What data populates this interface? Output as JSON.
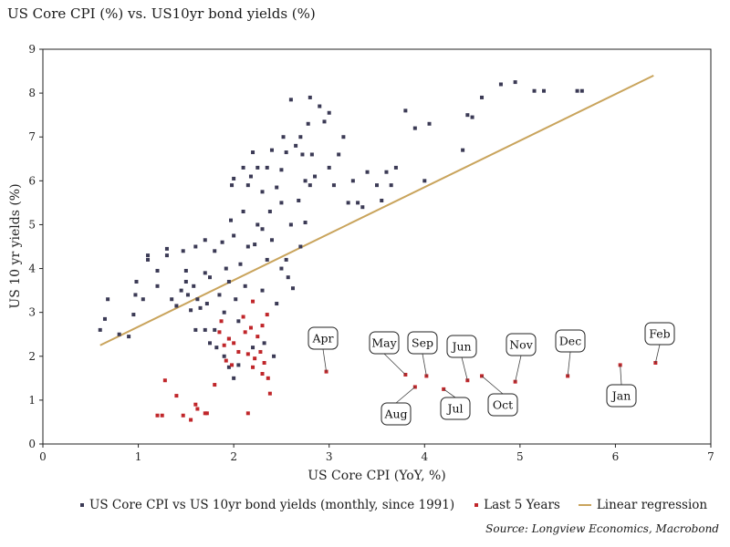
{
  "title": "US Core CPI (%) vs. US10yr bond yields (%)",
  "colors": {
    "historical": "#3b3a55",
    "recent": "#c0262a",
    "regression": "#c9a45c"
  },
  "legend": {
    "historical": "US Core CPI vs US 10yr bond yields (monthly, since 1991)",
    "recent": "Last 5 Years",
    "regression": "Linear regression"
  },
  "source": "Source: Longview Economics, Macrobond",
  "chart_data": {
    "type": "scatter",
    "xlabel": "US Core CPI (YoY, %)",
    "ylabel": "US 10 yr yields (%)",
    "xlim": [
      0,
      7
    ],
    "ylim": [
      0,
      9
    ],
    "xticks": [
      0,
      1,
      2,
      3,
      4,
      5,
      6,
      7
    ],
    "yticks": [
      0,
      1,
      2,
      3,
      4,
      5,
      6,
      7,
      8,
      9
    ],
    "grid": false,
    "legend_position": "bottom",
    "regression_line": [
      [
        0.6,
        2.25
      ],
      [
        6.4,
        8.4
      ]
    ],
    "series": [
      {
        "name": "US Core CPI vs US 10yr bond yields (monthly, since 1991)",
        "points": [
          [
            0.6,
            2.6
          ],
          [
            0.65,
            2.85
          ],
          [
            0.68,
            3.3
          ],
          [
            0.8,
            2.5
          ],
          [
            0.9,
            2.45
          ],
          [
            0.95,
            2.95
          ],
          [
            0.97,
            3.4
          ],
          [
            0.98,
            3.7
          ],
          [
            1.05,
            3.3
          ],
          [
            1.1,
            4.3
          ],
          [
            1.1,
            4.2
          ],
          [
            1.2,
            3.6
          ],
          [
            1.2,
            3.95
          ],
          [
            1.3,
            4.45
          ],
          [
            1.3,
            4.3
          ],
          [
            1.35,
            3.3
          ],
          [
            1.4,
            3.15
          ],
          [
            1.45,
            3.5
          ],
          [
            1.47,
            4.4
          ],
          [
            1.5,
            3.95
          ],
          [
            1.5,
            3.7
          ],
          [
            1.52,
            3.4
          ],
          [
            1.55,
            3.05
          ],
          [
            1.58,
            3.6
          ],
          [
            1.6,
            2.6
          ],
          [
            1.6,
            4.5
          ],
          [
            1.62,
            3.3
          ],
          [
            1.65,
            3.1
          ],
          [
            1.7,
            2.6
          ],
          [
            1.7,
            3.9
          ],
          [
            1.7,
            4.65
          ],
          [
            1.72,
            3.2
          ],
          [
            1.75,
            3.8
          ],
          [
            1.75,
            2.3
          ],
          [
            1.8,
            4.4
          ],
          [
            1.8,
            2.6
          ],
          [
            1.82,
            2.2
          ],
          [
            1.85,
            3.4
          ],
          [
            1.88,
            4.6
          ],
          [
            1.9,
            2.0
          ],
          [
            1.9,
            3.0
          ],
          [
            1.92,
            4.0
          ],
          [
            1.95,
            3.7
          ],
          [
            1.95,
            2.4
          ],
          [
            1.95,
            1.75
          ],
          [
            1.97,
            5.1
          ],
          [
            1.98,
            5.9
          ],
          [
            2.0,
            6.05
          ],
          [
            2.0,
            4.75
          ],
          [
            2.0,
            1.5
          ],
          [
            2.02,
            3.3
          ],
          [
            2.05,
            2.8
          ],
          [
            2.05,
            1.8
          ],
          [
            2.07,
            4.1
          ],
          [
            2.1,
            5.3
          ],
          [
            2.1,
            6.3
          ],
          [
            2.12,
            3.6
          ],
          [
            2.15,
            5.9
          ],
          [
            2.15,
            4.5
          ],
          [
            2.18,
            6.1
          ],
          [
            2.2,
            6.65
          ],
          [
            2.2,
            2.2
          ],
          [
            2.22,
            4.55
          ],
          [
            2.25,
            5.0
          ],
          [
            2.25,
            6.3
          ],
          [
            2.3,
            3.5
          ],
          [
            2.3,
            4.9
          ],
          [
            2.3,
            5.75
          ],
          [
            2.32,
            2.3
          ],
          [
            2.35,
            4.2
          ],
          [
            2.35,
            6.3
          ],
          [
            2.38,
            5.3
          ],
          [
            2.4,
            6.7
          ],
          [
            2.4,
            4.65
          ],
          [
            2.42,
            2.0
          ],
          [
            2.45,
            5.85
          ],
          [
            2.45,
            3.2
          ],
          [
            2.5,
            6.25
          ],
          [
            2.5,
            4.0
          ],
          [
            2.5,
            5.5
          ],
          [
            2.52,
            7.0
          ],
          [
            2.55,
            6.65
          ],
          [
            2.55,
            4.2
          ],
          [
            2.57,
            3.8
          ],
          [
            2.6,
            7.85
          ],
          [
            2.6,
            5.0
          ],
          [
            2.62,
            3.55
          ],
          [
            2.65,
            6.8
          ],
          [
            2.68,
            5.55
          ],
          [
            2.7,
            7.0
          ],
          [
            2.7,
            4.5
          ],
          [
            2.72,
            6.6
          ],
          [
            2.75,
            6.0
          ],
          [
            2.75,
            5.05
          ],
          [
            2.78,
            7.3
          ],
          [
            2.8,
            5.9
          ],
          [
            2.8,
            7.9
          ],
          [
            2.82,
            6.6
          ],
          [
            2.85,
            6.1
          ],
          [
            2.9,
            7.7
          ],
          [
            2.95,
            7.35
          ],
          [
            3.0,
            6.3
          ],
          [
            3.0,
            7.55
          ],
          [
            3.05,
            5.9
          ],
          [
            3.1,
            6.6
          ],
          [
            3.15,
            7.0
          ],
          [
            3.2,
            5.5
          ],
          [
            3.25,
            6.0
          ],
          [
            3.3,
            5.5
          ],
          [
            3.35,
            5.4
          ],
          [
            3.4,
            6.2
          ],
          [
            3.5,
            5.9
          ],
          [
            3.55,
            5.55
          ],
          [
            3.6,
            6.2
          ],
          [
            3.65,
            5.9
          ],
          [
            3.7,
            6.3
          ],
          [
            3.8,
            7.6
          ],
          [
            3.9,
            7.2
          ],
          [
            4.0,
            6.0
          ],
          [
            4.05,
            7.3
          ],
          [
            4.4,
            6.7
          ],
          [
            4.45,
            7.5
          ],
          [
            4.5,
            7.45
          ],
          [
            4.6,
            7.9
          ],
          [
            4.8,
            8.2
          ],
          [
            4.95,
            8.25
          ],
          [
            5.15,
            8.05
          ],
          [
            5.25,
            8.05
          ],
          [
            5.6,
            8.05
          ],
          [
            5.65,
            8.05
          ]
        ]
      },
      {
        "name": "Last 5 Years",
        "points": [
          [
            1.2,
            0.65
          ],
          [
            1.25,
            0.65
          ],
          [
            1.28,
            1.45
          ],
          [
            1.4,
            1.1
          ],
          [
            1.47,
            0.65
          ],
          [
            1.55,
            0.55
          ],
          [
            1.6,
            0.9
          ],
          [
            1.62,
            0.8
          ],
          [
            1.7,
            0.7
          ],
          [
            1.72,
            0.7
          ],
          [
            1.8,
            1.35
          ],
          [
            1.85,
            2.55
          ],
          [
            1.87,
            2.8
          ],
          [
            1.9,
            2.25
          ],
          [
            1.92,
            1.9
          ],
          [
            1.95,
            2.4
          ],
          [
            1.98,
            1.8
          ],
          [
            2.0,
            2.3
          ],
          [
            2.05,
            2.1
          ],
          [
            2.1,
            2.9
          ],
          [
            2.12,
            2.55
          ],
          [
            2.15,
            0.7
          ],
          [
            2.15,
            2.05
          ],
          [
            2.18,
            2.65
          ],
          [
            2.2,
            1.75
          ],
          [
            2.2,
            3.25
          ],
          [
            2.22,
            1.95
          ],
          [
            2.25,
            2.45
          ],
          [
            2.28,
            2.1
          ],
          [
            2.3,
            1.6
          ],
          [
            2.3,
            2.7
          ],
          [
            2.32,
            1.85
          ],
          [
            2.35,
            2.95
          ],
          [
            2.36,
            1.5
          ],
          [
            2.38,
            1.15
          ],
          [
            2.97,
            1.65
          ],
          [
            3.8,
            1.58
          ],
          [
            3.9,
            1.3
          ],
          [
            4.02,
            1.55
          ],
          [
            4.2,
            1.25
          ],
          [
            4.45,
            1.45
          ],
          [
            4.6,
            1.55
          ],
          [
            4.95,
            1.42
          ],
          [
            5.5,
            1.55
          ],
          [
            6.05,
            1.8
          ],
          [
            6.42,
            1.85
          ]
        ]
      }
    ],
    "annotations": [
      {
        "label": "Apr",
        "x": 2.97,
        "y": 1.65
      },
      {
        "label": "May",
        "x": 3.8,
        "y": 1.58
      },
      {
        "label": "Aug",
        "x": 3.9,
        "y": 1.3
      },
      {
        "label": "Sep",
        "x": 4.02,
        "y": 1.55
      },
      {
        "label": "Jul",
        "x": 4.2,
        "y": 1.25
      },
      {
        "label": "Jun",
        "x": 4.45,
        "y": 1.45
      },
      {
        "label": "Oct",
        "x": 4.6,
        "y": 1.55
      },
      {
        "label": "Nov",
        "x": 4.95,
        "y": 1.42
      },
      {
        "label": "Dec",
        "x": 5.5,
        "y": 1.55
      },
      {
        "label": "Jan",
        "x": 6.05,
        "y": 1.8
      },
      {
        "label": "Feb",
        "x": 6.42,
        "y": 1.85
      }
    ]
  }
}
